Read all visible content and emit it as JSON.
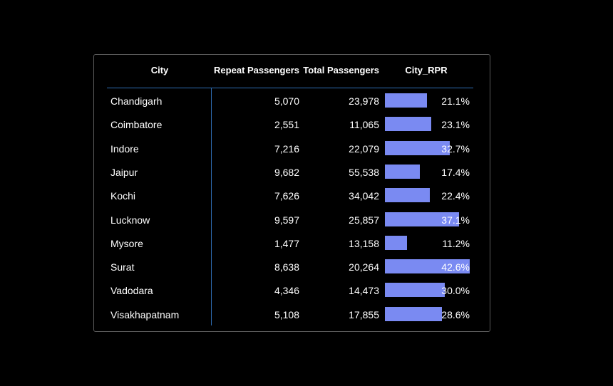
{
  "table": {
    "headers": {
      "city": "City",
      "repeat": "Repeat Passengers",
      "total": "Total Passengers",
      "rpr": "City_RPR"
    },
    "rows": [
      {
        "city": "Chandigarh",
        "repeat": "5,070",
        "total": "23,978",
        "rpr": "21.1%",
        "rpr_value": 21.1
      },
      {
        "city": "Coimbatore",
        "repeat": "2,551",
        "total": "11,065",
        "rpr": "23.1%",
        "rpr_value": 23.1
      },
      {
        "city": "Indore",
        "repeat": "7,216",
        "total": "22,079",
        "rpr": "32.7%",
        "rpr_value": 32.7
      },
      {
        "city": "Jaipur",
        "repeat": "9,682",
        "total": "55,538",
        "rpr": "17.4%",
        "rpr_value": 17.4
      },
      {
        "city": "Kochi",
        "repeat": "7,626",
        "total": "34,042",
        "rpr": "22.4%",
        "rpr_value": 22.4
      },
      {
        "city": "Lucknow",
        "repeat": "9,597",
        "total": "25,857",
        "rpr": "37.1%",
        "rpr_value": 37.1
      },
      {
        "city": "Mysore",
        "repeat": "1,477",
        "total": "13,158",
        "rpr": "11.2%",
        "rpr_value": 11.2
      },
      {
        "city": "Surat",
        "repeat": "8,638",
        "total": "20,264",
        "rpr": "42.6%",
        "rpr_value": 42.6
      },
      {
        "city": "Vadodara",
        "repeat": "4,346",
        "total": "14,473",
        "rpr": "30.0%",
        "rpr_value": 30.0
      },
      {
        "city": "Visakhapatnam",
        "repeat": "5,108",
        "total": "17,855",
        "rpr": "28.6%",
        "rpr_value": 28.6
      }
    ],
    "rpr_max": 42.6
  },
  "colors": {
    "background": "#000000",
    "border": "#5a5a5a",
    "accent_line": "#2f6fb5",
    "bar": "#7a8af2",
    "text": "#ffffff"
  }
}
